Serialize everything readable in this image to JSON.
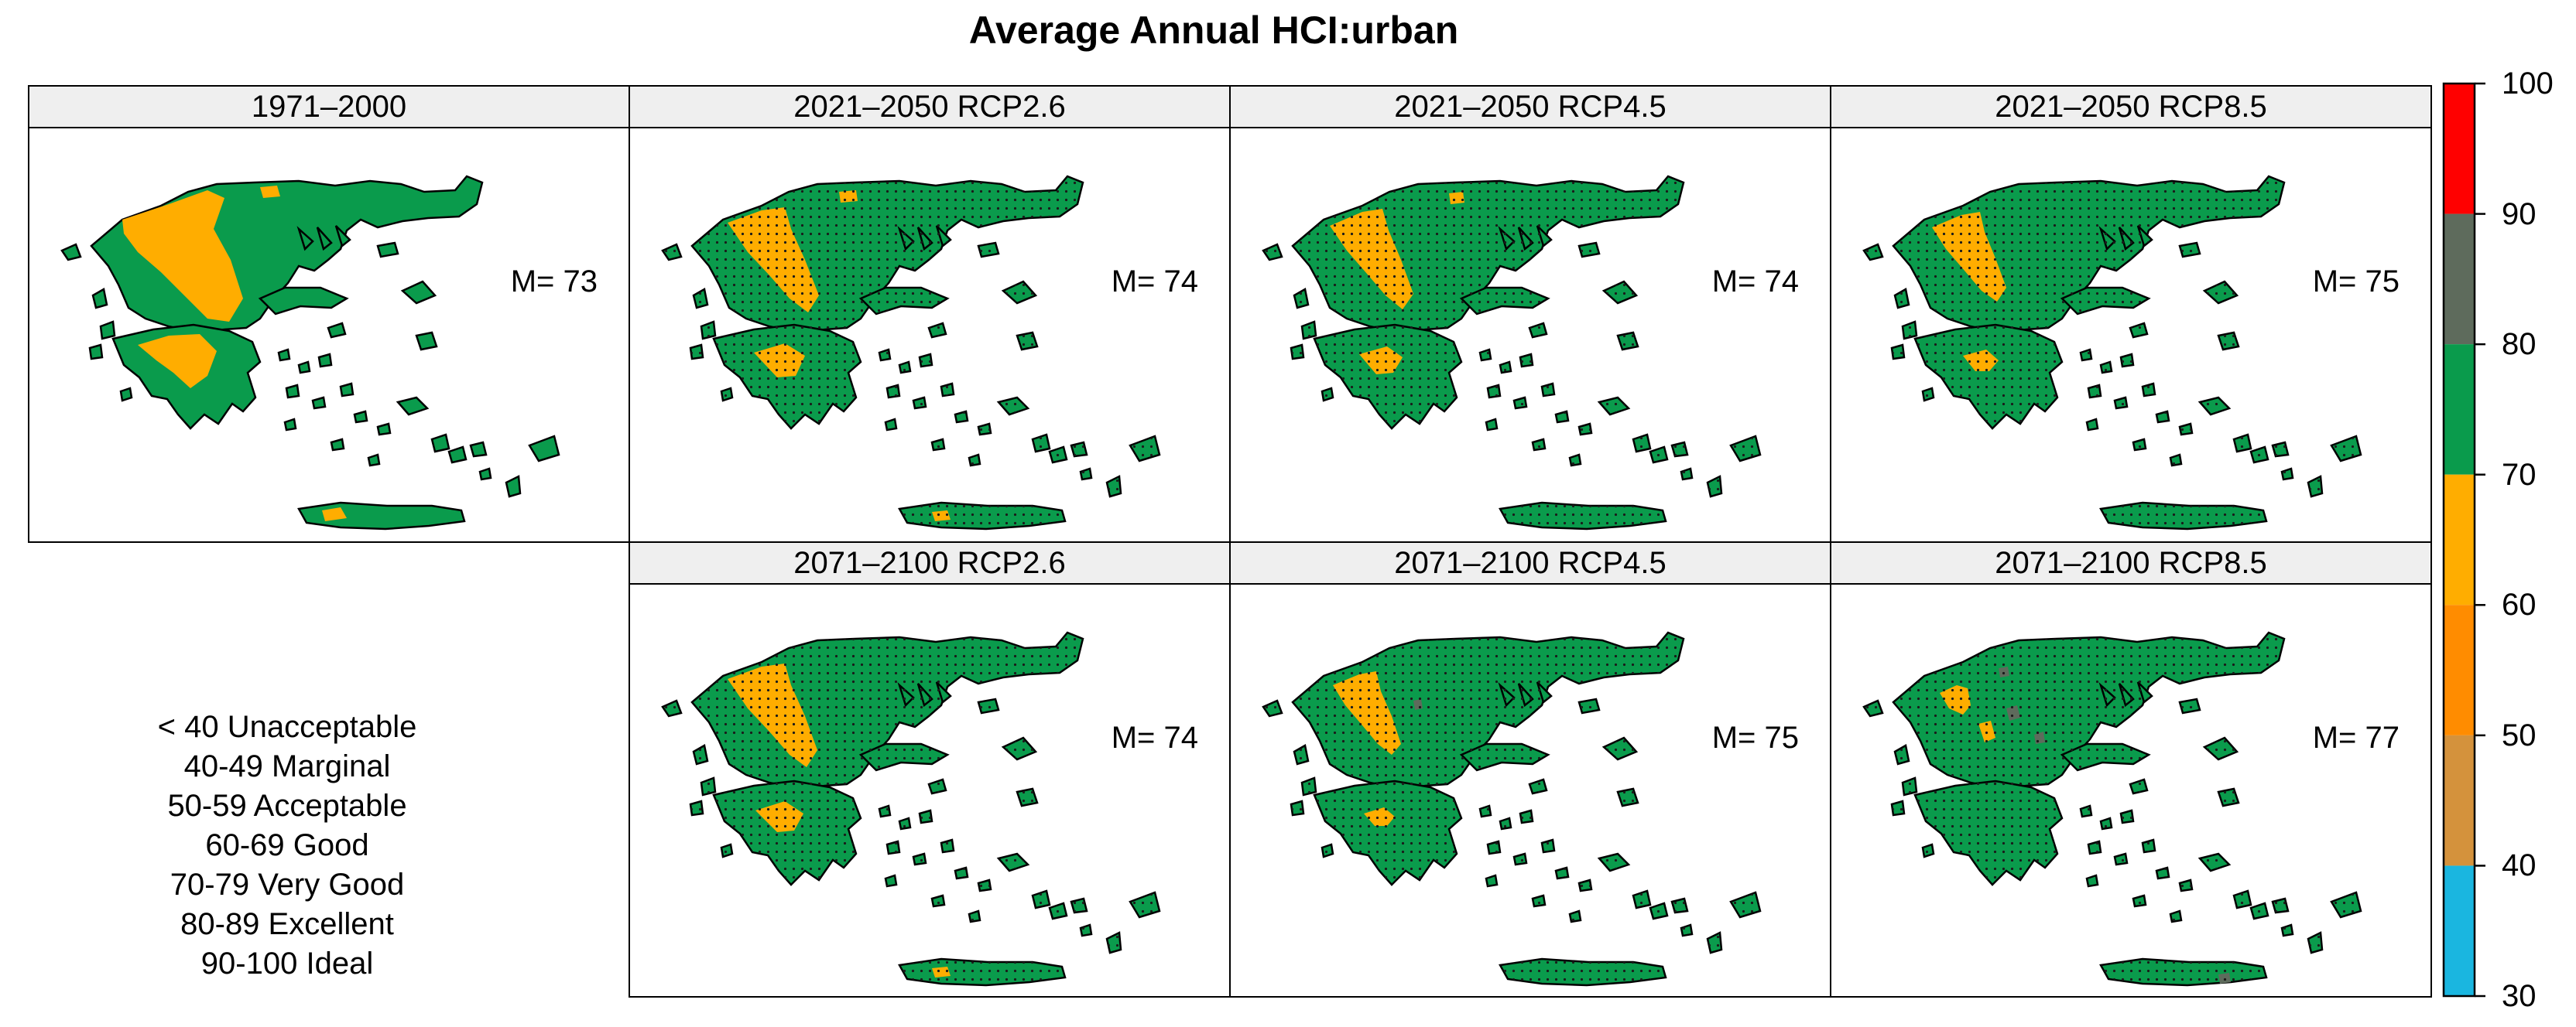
{
  "title": "Average Annual HCI:urban",
  "panels": [
    {
      "label": "1971–2000",
      "mean": "M= 73"
    },
    {
      "label": "2021–2050 RCP2.6",
      "mean": "M= 74"
    },
    {
      "label": "2021–2050 RCP4.5",
      "mean": "M= 74"
    },
    {
      "label": "2021–2050 RCP8.5",
      "mean": "M= 75"
    },
    {
      "label": "2071–2100 RCP2.6",
      "mean": "M= 74"
    },
    {
      "label": "2071–2100 RCP4.5",
      "mean": "M= 75"
    },
    {
      "label": "2071–2100 RCP8.5",
      "mean": "M= 77"
    }
  ],
  "legend_classes": [
    "< 40 Unacceptable",
    "40-49 Marginal",
    "50-59 Acceptable",
    "60-69 Good",
    "70-79 Very Good",
    "80-89 Excellent",
    "90-100 Ideal"
  ],
  "colorbar": {
    "ticks": [
      "100",
      "90",
      "80",
      "70",
      "60",
      "50",
      "40",
      "30"
    ],
    "bands": [
      {
        "from": 90,
        "to": 100,
        "color": "#ff0000"
      },
      {
        "from": 80,
        "to": 90,
        "color": "#5e6b5c"
      },
      {
        "from": 70,
        "to": 80,
        "color": "#0a9b4c"
      },
      {
        "from": 60,
        "to": 70,
        "color": "#ffad00"
      },
      {
        "from": 50,
        "to": 60,
        "color": "#ff8c00"
      },
      {
        "from": 40,
        "to": 50,
        "color": "#d4923c"
      },
      {
        "from": 30,
        "to": 40,
        "color": "#1ab6e0"
      }
    ]
  },
  "map_colors": {
    "land_green": "#0a9b4c",
    "land_orange": "#ffad00",
    "land_dark": "#5e6b5c",
    "coast": "#000000"
  }
}
